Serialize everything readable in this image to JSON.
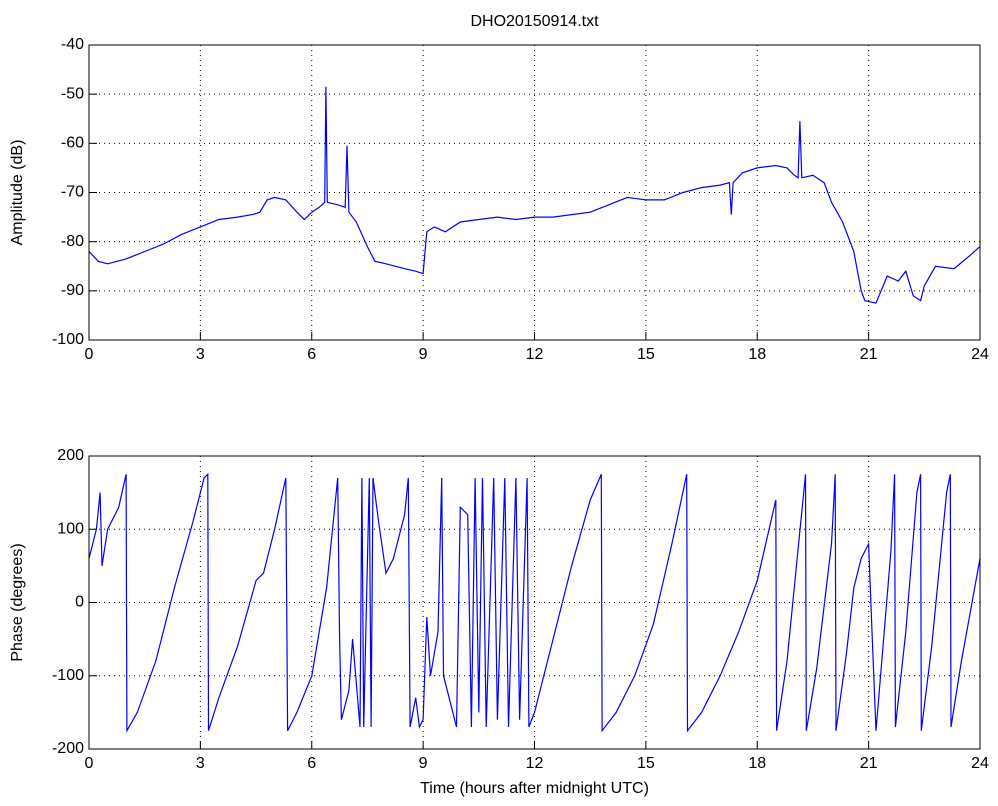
{
  "chart_data": [
    {
      "type": "line",
      "title": "DHO20150914.txt",
      "y_label": "Amplitude (dB)",
      "color": "#0000ff",
      "grid": true,
      "xlim": [
        0,
        24
      ],
      "xticks": [
        0,
        3,
        6,
        9,
        12,
        15,
        18,
        21,
        24
      ],
      "ylim": [
        -100,
        -40
      ],
      "yticks": [
        -100,
        -90,
        -80,
        -70,
        -60,
        -50,
        -40
      ],
      "x": [
        0,
        0.25,
        0.5,
        1,
        1.5,
        2,
        2.5,
        3,
        3.5,
        4,
        4.4,
        4.6,
        4.8,
        5,
        5.3,
        5.6,
        5.8,
        6,
        6.2,
        6.35,
        6.38,
        6.42,
        6.7,
        6.9,
        6.95,
        7,
        7.2,
        7.5,
        7.7,
        8,
        8.5,
        8.8,
        9,
        9.1,
        9.3,
        9.6,
        10,
        10.5,
        11,
        11.5,
        12,
        12.5,
        13,
        13.5,
        14,
        14.5,
        15,
        15.5,
        16,
        16.5,
        17,
        17.25,
        17.3,
        17.35,
        17.6,
        18,
        18.5,
        18.8,
        19,
        19.1,
        19.15,
        19.2,
        19.5,
        19.8,
        20,
        20.3,
        20.6,
        20.8,
        20.9,
        21.2,
        21.5,
        21.8,
        22,
        22.2,
        22.4,
        22.5,
        22.8,
        23.3,
        23.7,
        24
      ],
      "values": [
        -82,
        -84,
        -84.5,
        -83.5,
        -82,
        -80.5,
        -78.5,
        -77,
        -75.5,
        -75,
        -74.5,
        -74,
        -71.5,
        -71,
        -71.5,
        -74,
        -75.5,
        -74,
        -73,
        -72,
        -48.5,
        -72,
        -72.5,
        -73,
        -60.5,
        -74,
        -76,
        -81,
        -84,
        -84.5,
        -85.5,
        -86,
        -86.5,
        -78,
        -77,
        -78,
        -76,
        -75.5,
        -75,
        -75.5,
        -75,
        -75,
        -74.5,
        -74,
        -72.5,
        -71,
        -71.5,
        -71.5,
        -70,
        -69,
        -68.5,
        -68,
        -74.5,
        -68,
        -66,
        -65,
        -64.5,
        -65,
        -66.5,
        -67,
        -55.5,
        -67,
        -66.5,
        -68,
        -72,
        -76,
        -82,
        -90,
        -92,
        -92.5,
        -87,
        -88,
        -86,
        -91,
        -92,
        -89,
        -85,
        -85.5,
        -83,
        -81
      ]
    },
    {
      "type": "line",
      "x_label": "Time (hours after midnight UTC)",
      "y_label": "Phase (degrees)",
      "color": "#0000ff",
      "grid": true,
      "xlim": [
        0,
        24
      ],
      "xticks": [
        0,
        3,
        6,
        9,
        12,
        15,
        18,
        21,
        24
      ],
      "ylim": [
        -200,
        200
      ],
      "yticks": [
        -200,
        -100,
        0,
        100,
        200
      ],
      "x": [
        0,
        0.2,
        0.3,
        0.35,
        0.5,
        0.8,
        1.0,
        1.02,
        1.3,
        1.8,
        2.3,
        2.8,
        3.1,
        3.2,
        3.22,
        3.5,
        4,
        4.5,
        4.7,
        5.0,
        5.3,
        5.35,
        5.6,
        6,
        6.4,
        6.6,
        6.7,
        6.75,
        6.8,
        7.0,
        7.1,
        7.3,
        7.35,
        7.4,
        7.55,
        7.6,
        7.65,
        7.8,
        8.0,
        8.2,
        8.5,
        8.6,
        8.65,
        8.8,
        8.9,
        9.0,
        9.1,
        9.2,
        9.4,
        9.5,
        9.55,
        9.7,
        9.9,
        10.0,
        10.2,
        10.3,
        10.4,
        10.5,
        10.6,
        10.7,
        10.9,
        11.0,
        11.2,
        11.3,
        11.5,
        11.6,
        11.8,
        11.85,
        12.0,
        12.5,
        13.0,
        13.5,
        13.8,
        13.82,
        14.2,
        14.7,
        15.2,
        15.7,
        16.1,
        16.12,
        16.5,
        17,
        17.5,
        18,
        18.5,
        18.52,
        18.8,
        19.3,
        19.32,
        19.6,
        20.0,
        20.1,
        20.12,
        20.4,
        20.6,
        20.8,
        21.0,
        21.1,
        21.2,
        21.6,
        21.7,
        21.72,
        22.0,
        22.3,
        22.4,
        22.42,
        22.7,
        23.1,
        23.2,
        23.22,
        23.5,
        24
      ],
      "values": [
        60,
        100,
        150,
        50,
        100,
        130,
        175,
        -175,
        -150,
        -80,
        20,
        110,
        170,
        175,
        -175,
        -130,
        -60,
        30,
        40,
        100,
        170,
        -175,
        -150,
        -100,
        20,
        120,
        170,
        -50,
        -160,
        -120,
        -50,
        -170,
        170,
        -170,
        170,
        -170,
        170,
        110,
        40,
        60,
        120,
        170,
        -170,
        -130,
        -170,
        -160,
        -20,
        -100,
        -40,
        170,
        -100,
        -130,
        -170,
        130,
        120,
        -170,
        170,
        -150,
        170,
        -170,
        170,
        -160,
        170,
        -170,
        170,
        -160,
        170,
        -170,
        -150,
        -50,
        50,
        140,
        175,
        -175,
        -150,
        -100,
        -30,
        80,
        175,
        -175,
        -150,
        -100,
        -40,
        30,
        140,
        -175,
        -80,
        175,
        -175,
        -90,
        80,
        175,
        -175,
        -70,
        20,
        60,
        80,
        -50,
        -175,
        70,
        175,
        -170,
        -40,
        150,
        175,
        -175,
        -60,
        150,
        175,
        -170,
        -80,
        60
      ]
    }
  ]
}
